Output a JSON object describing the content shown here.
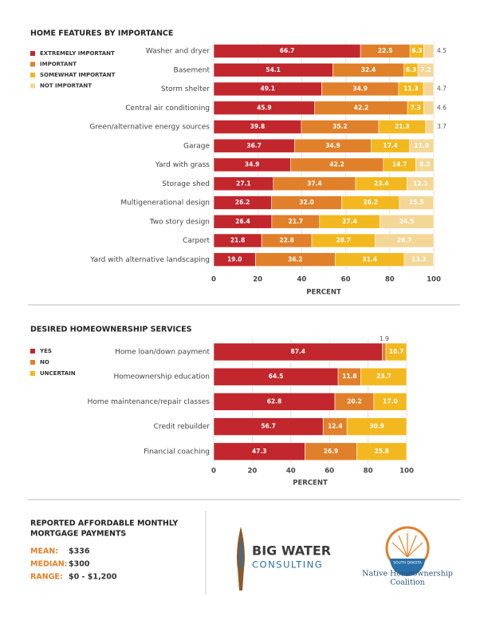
{
  "chart_data": [
    {
      "type": "bar",
      "orientation": "horizontal",
      "stacked": true,
      "title": "HOME FEATURES BY IMPORTANCE",
      "categories": [
        "Washer and dryer",
        "Basement",
        "Storm shelter",
        "Central air conditioning",
        "Green/alternative energy sources",
        "Garage",
        "Yard with grass",
        "Storage shed",
        "Multigenerational design",
        "Two story design",
        "Carport",
        "Yard with alternative landscaping"
      ],
      "series": [
        {
          "name": "EXTREMELY IMPORTANT",
          "color": "#c1272d",
          "values": [
            66.7,
            54.1,
            49.1,
            45.9,
            39.8,
            36.7,
            34.9,
            27.1,
            26.2,
            26.4,
            21.8,
            19.0
          ],
          "value_labels": [
            "66.7",
            "54.1",
            "49.1",
            "45.9",
            "39.8",
            "36.7",
            "34.9",
            "27.1",
            "26.2",
            "26.4",
            "21.8",
            "19.0"
          ]
        },
        {
          "name": "IMPORTANT",
          "color": "#e1802a",
          "values": [
            22.5,
            32.4,
            34.9,
            42.2,
            35.2,
            34.9,
            42.2,
            37.4,
            32.0,
            21.7,
            22.8,
            36.2
          ],
          "value_labels": [
            "22.5",
            "32.4",
            "34.9",
            "42.2",
            "35.2",
            "34.9",
            "42.2",
            "37.4",
            "32.0",
            "21.7",
            "22.8",
            "36.2"
          ]
        },
        {
          "name": "SOMEWHAT IMPORTANT",
          "color": "#f3b81f",
          "values": [
            6.3,
            6.3,
            11.3,
            7.3,
            21.3,
            17.4,
            14.7,
            23.4,
            26.2,
            27.4,
            28.7,
            31.4
          ],
          "value_labels": [
            "6.3",
            "6.3",
            "11.3",
            "7.3",
            "21.3",
            "17.4",
            "14.7",
            "23.4",
            "26.2",
            "27.4",
            "28.7",
            "31.4"
          ]
        },
        {
          "name": "NOT IMPORTANT",
          "color": "#f4d796",
          "values": [
            4.5,
            7.2,
            4.7,
            4.6,
            3.7,
            11.0,
            8.3,
            12.1,
            15.5,
            24.5,
            26.7,
            13.3
          ],
          "value_labels": [
            "4.5",
            "7.2",
            "4.7",
            "4.6",
            "3.7",
            "11.0",
            "8.3",
            "12.1",
            "15.5",
            "24.5",
            "26.7",
            "13.3"
          ]
        }
      ],
      "xlim": [
        0,
        100
      ],
      "xticks": [
        0,
        20,
        40,
        60,
        80,
        100
      ],
      "xlabel": "PERCENT",
      "grid": true
    },
    {
      "type": "bar",
      "orientation": "horizontal",
      "stacked": true,
      "title": "DESIRED HOMEOWNERSHIP SERVICES",
      "categories": [
        "Home loan/down payment",
        "Homeownership education",
        "Home maintenance/repair classes",
        "Credit rebuilder",
        "Financial coaching"
      ],
      "series": [
        {
          "name": "YES",
          "color": "#c1272d",
          "values": [
            87.4,
            64.5,
            62.8,
            56.7,
            47.3
          ],
          "value_labels": [
            "87.4",
            "64.5",
            "62.8",
            "56.7",
            "47.3"
          ]
        },
        {
          "name": "NO",
          "color": "#e1802a",
          "values": [
            1.9,
            11.8,
            20.2,
            12.4,
            26.9
          ],
          "value_labels": [
            "1.9",
            "11.8",
            "20.2",
            "12.4",
            "26.9"
          ]
        },
        {
          "name": "UNCERTAIN",
          "color": "#f3b81f",
          "values": [
            10.7,
            23.7,
            17.0,
            30.9,
            25.8
          ],
          "value_labels": [
            "10.7",
            "23.7",
            "17.0",
            "30.9",
            "25.8"
          ]
        }
      ],
      "xlim": [
        0,
        100
      ],
      "xticks": [
        0,
        20,
        40,
        60,
        80,
        100
      ],
      "xlabel": "PERCENT",
      "grid": true
    }
  ],
  "mortgage": {
    "title": [
      "REPORTED AFFORDABLE MONTHLY",
      "MORTGAGE PAYMENTS"
    ],
    "items": [
      {
        "label": "MEAN:",
        "value": "$336"
      },
      {
        "label": "MEDIAN:",
        "value": "$300"
      },
      {
        "label": "RANGE:",
        "value": "$0 - $1,200"
      }
    ]
  },
  "logos": {
    "big_water": [
      "BIG WATER",
      "CONSULTING"
    ],
    "coalition": {
      "state": "SOUTH DAKOTA",
      "name": [
        "Native Homeownership",
        "Coalition"
      ]
    }
  }
}
